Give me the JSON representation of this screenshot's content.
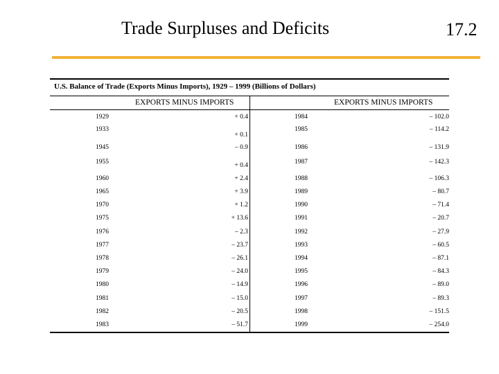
{
  "header": {
    "title": "Trade Surpluses and Deficits",
    "number": "17.2"
  },
  "table": {
    "caption": "U.S. Balance of Trade (Exports Minus Imports), 1929 – 1999 (Billions of Dollars)",
    "columns": [
      "EXPORTS MINUS IMPORTS",
      "EXPORTS MINUS IMPORTS"
    ],
    "rows": [
      [
        "1929",
        "+ 0.4",
        "1984",
        "– 102.0"
      ],
      [
        "1933",
        "+ 0.1",
        "1985",
        "– 114.2"
      ],
      [
        "1945",
        "– 0.9",
        "1986",
        "– 131.9"
      ],
      [
        "1955",
        "+ 0.4",
        "1987",
        "– 142.3"
      ],
      [
        "1960",
        "+ 2.4",
        "1988",
        "– 106.3"
      ],
      [
        "1965",
        "+ 3.9",
        "1989",
        "– 80.7"
      ],
      [
        "1970",
        "+ 1.2",
        "1990",
        "– 71.4"
      ],
      [
        "1975",
        "+ 13.6",
        "1991",
        "– 20.7"
      ],
      [
        "1976",
        "– 2.3",
        "1992",
        "– 27.9"
      ],
      [
        "1977",
        "– 23.7",
        "1993",
        "– 60.5"
      ],
      [
        "1978",
        "– 26.1",
        "1994",
        "– 87.1"
      ],
      [
        "1979",
        "– 24.0",
        "1995",
        "– 84.3"
      ],
      [
        "1980",
        "– 14.9",
        "1996",
        "– 89.0"
      ],
      [
        "1981",
        "– 15.0",
        "1997",
        "– 89.3"
      ],
      [
        "1982",
        "– 20.5",
        "1998",
        "– 151.5"
      ],
      [
        "1983",
        "– 51.7",
        "1999",
        "– 254.0"
      ]
    ]
  }
}
